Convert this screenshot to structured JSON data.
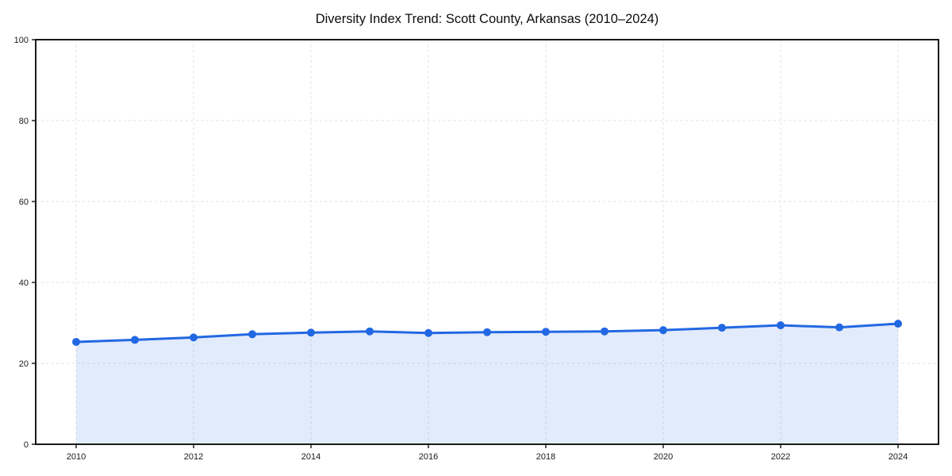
{
  "chart_data": {
    "type": "line",
    "title": "Diversity Index Trend: Scott County, Arkansas (2010–2024)",
    "xlabel": "",
    "ylabel": "",
    "x": [
      2010,
      2011,
      2012,
      2013,
      2014,
      2015,
      2016,
      2017,
      2018,
      2019,
      2020,
      2021,
      2022,
      2023,
      2024
    ],
    "series": [
      {
        "name": "Diversity Index",
        "values": [
          25.3,
          25.8,
          26.4,
          27.2,
          27.6,
          27.9,
          27.5,
          27.7,
          27.8,
          27.9,
          28.2,
          28.8,
          29.4,
          28.9,
          29.8
        ]
      }
    ],
    "ylim": [
      0,
      100
    ],
    "yticks": [
      0,
      20,
      40,
      60,
      80,
      100
    ],
    "xticks": [
      2010,
      2012,
      2014,
      2016,
      2018,
      2020,
      2022,
      2024
    ],
    "grid": true,
    "grid_style": "dashed",
    "legend": "none",
    "marker": "circle",
    "area_fill": true,
    "colors": {
      "line": "#2268e3",
      "area": "#2268e3",
      "area_opacity": 0.13,
      "grid": "#e3e3e3",
      "spine": "#000000",
      "tick_label": "#1a1a1a",
      "title": "#0d0d0d",
      "background": "#ffffff"
    }
  }
}
